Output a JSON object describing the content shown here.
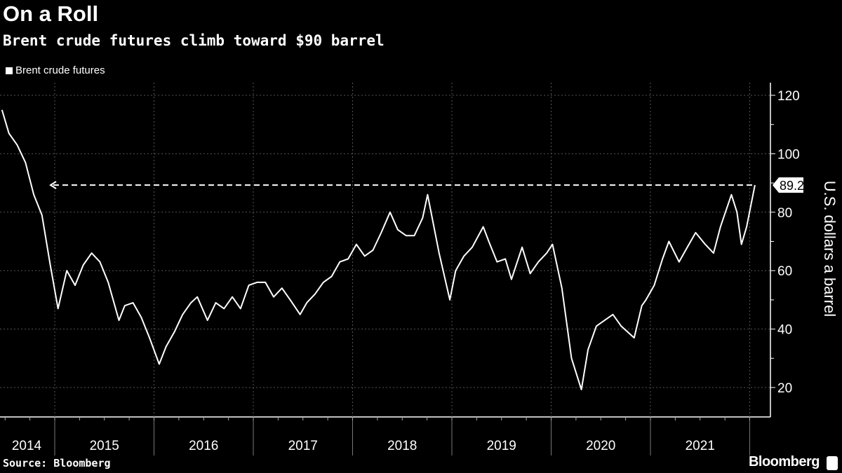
{
  "header": {
    "title": "On a Roll",
    "subtitle": "Brent crude futures climb toward $90 barrel"
  },
  "footer": {
    "source": "Source: Bloomberg",
    "brand": "Bloomberg"
  },
  "chart_data": {
    "type": "line",
    "title": "On a Roll",
    "subtitle": "Brent crude futures climb toward $90 barrel",
    "ylabel": "U.S. dollars a barrel",
    "xlabel": "",
    "ylim": [
      10,
      122
    ],
    "yticks": [
      20,
      40,
      60,
      80,
      100,
      120
    ],
    "xticks": [
      "2014",
      "2015",
      "2016",
      "2017",
      "2018",
      "2019",
      "2020",
      "2021"
    ],
    "grid": true,
    "legend_position": "top-left",
    "colors": {
      "line": "#ffffff",
      "background": "#000000",
      "grid": "#555555"
    },
    "series": [
      {
        "name": "Brent crude futures",
        "x": [
          "2014-06-20",
          "2014-07-15",
          "2014-08-15",
          "2014-09-15",
          "2014-10-15",
          "2014-11-15",
          "2014-12-15",
          "2015-01-13",
          "2015-02-15",
          "2015-03-15",
          "2015-04-15",
          "2015-05-15",
          "2015-06-15",
          "2015-07-15",
          "2015-08-24",
          "2015-09-15",
          "2015-10-15",
          "2015-11-15",
          "2015-12-15",
          "2016-01-20",
          "2016-02-15",
          "2016-03-15",
          "2016-04-15",
          "2016-05-15",
          "2016-06-08",
          "2016-07-15",
          "2016-08-15",
          "2016-09-15",
          "2016-10-15",
          "2016-11-15",
          "2016-12-15",
          "2017-01-15",
          "2017-02-15",
          "2017-03-15",
          "2017-04-15",
          "2017-05-15",
          "2017-06-21",
          "2017-07-15",
          "2017-08-15",
          "2017-09-15",
          "2017-10-15",
          "2017-11-15",
          "2017-12-15",
          "2018-01-15",
          "2018-02-15",
          "2018-03-15",
          "2018-04-15",
          "2018-05-17",
          "2018-06-15",
          "2018-07-15",
          "2018-08-15",
          "2018-09-15",
          "2018-10-03",
          "2018-11-15",
          "2018-12-24",
          "2019-01-15",
          "2019-02-15",
          "2019-03-15",
          "2019-04-25",
          "2019-05-15",
          "2019-06-15",
          "2019-07-15",
          "2019-08-07",
          "2019-09-16",
          "2019-10-15",
          "2019-11-15",
          "2019-12-15",
          "2020-01-06",
          "2020-02-10",
          "2020-03-15",
          "2020-04-21",
          "2020-05-15",
          "2020-06-15",
          "2020-07-15",
          "2020-08-15",
          "2020-09-15",
          "2020-11-02",
          "2020-11-30",
          "2020-12-15",
          "2021-01-15",
          "2021-02-15",
          "2021-03-08",
          "2021-04-15",
          "2021-05-15",
          "2021-06-15",
          "2021-07-20",
          "2021-08-20",
          "2021-09-15",
          "2021-10-25",
          "2021-11-15",
          "2021-12-01",
          "2021-12-20",
          "2022-01-20"
        ],
        "values": [
          115,
          107,
          103,
          97,
          86,
          79,
          62,
          47,
          60,
          55,
          62,
          66,
          63,
          56,
          43,
          48,
          49,
          44,
          37,
          28,
          34,
          39,
          45,
          49,
          51,
          43,
          49,
          47,
          51,
          47,
          55,
          56,
          56,
          51,
          54,
          50,
          45,
          49,
          52,
          56,
          58,
          63,
          64,
          69,
          65,
          67,
          73,
          80,
          74,
          72,
          72,
          78,
          86,
          66,
          50,
          60,
          65,
          68,
          75,
          70,
          63,
          64,
          57,
          68,
          59,
          63,
          66,
          69,
          54,
          30,
          19.3,
          33,
          41,
          43,
          45,
          41,
          37,
          48,
          50,
          55,
          64,
          70,
          63,
          68,
          73,
          69,
          66,
          75,
          86,
          80,
          69,
          75,
          89.28
        ]
      }
    ],
    "annotations": [
      {
        "type": "dashed-arrow",
        "value": 89.28,
        "label": "89.28"
      }
    ]
  }
}
